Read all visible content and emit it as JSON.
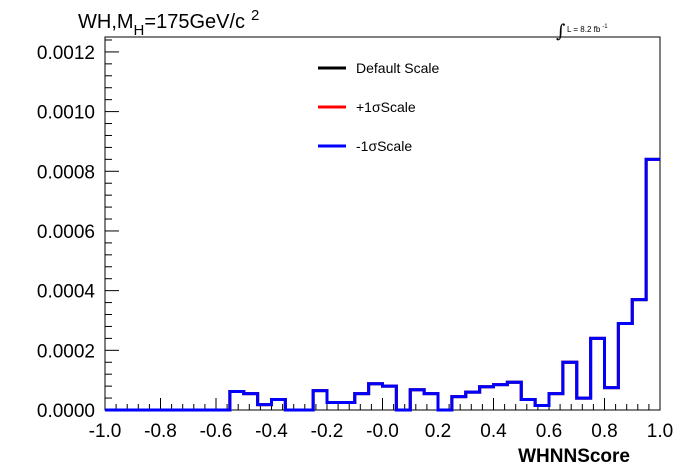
{
  "chart_data": {
    "type": "step-histogram",
    "title_main": "WH,M",
    "title_sub": "H",
    "title_rest": "=175GeV/c",
    "title_sup": "2",
    "lumi_label": "L = 8.2 fb",
    "lumi_sup": "-1",
    "xlabel": "WHNNScore",
    "xlim": [
      -1.0,
      1.0
    ],
    "ylim": [
      0.0,
      0.00125
    ],
    "x_ticks": [
      "-1.0",
      "-0.8",
      "-0.6",
      "-0.4",
      "-0.2",
      "-0.0",
      "0.2",
      "0.4",
      "0.6",
      "0.8",
      "1.0"
    ],
    "x_tick_values": [
      -1.0,
      -0.8,
      -0.6,
      -0.4,
      -0.2,
      0.0,
      0.2,
      0.4,
      0.6,
      0.8,
      1.0
    ],
    "y_ticks": [
      "0.0000",
      "0.0002",
      "0.0004",
      "0.0006",
      "0.0008",
      "0.0010",
      "0.0012"
    ],
    "y_tick_values": [
      0.0,
      0.0002,
      0.0004,
      0.0006,
      0.0008,
      0.001,
      0.0012
    ],
    "bin_edges_start": -1.0,
    "bin_width": 0.05,
    "series": [
      {
        "name": "Default Scale",
        "color": "#000000",
        "values": [
          0,
          0,
          0,
          0,
          0,
          0,
          0,
          0,
          0,
          6.2e-05,
          5.5e-05,
          1.8e-05,
          3.5e-05,
          0,
          0,
          6.5e-05,
          2.5e-05,
          2.5e-05,
          5.5e-05,
          8.8e-05,
          8e-05,
          0,
          6.8e-05,
          5.5e-05,
          0,
          4.5e-05,
          6e-05,
          7.8e-05,
          8.5e-05,
          9.3e-05,
          3.5e-05,
          1.5e-05,
          5.5e-05,
          0.00016,
          4e-05,
          0.00024,
          7.5e-05,
          0.00029,
          0.00037,
          0.00084
        ]
      },
      {
        "name": "+1σScale",
        "color": "#ff0000",
        "values": [
          0,
          0,
          0,
          0,
          0,
          0,
          0,
          0,
          0,
          6.2e-05,
          5.5e-05,
          1.8e-05,
          3.5e-05,
          0,
          0,
          6.5e-05,
          2.5e-05,
          2.5e-05,
          5.5e-05,
          8.8e-05,
          8e-05,
          0,
          6.8e-05,
          5.5e-05,
          0,
          4.5e-05,
          6e-05,
          7.8e-05,
          8.5e-05,
          9.3e-05,
          3.5e-05,
          1.5e-05,
          5.5e-05,
          0.00016,
          4e-05,
          0.00024,
          7.5e-05,
          0.00029,
          0.00037,
          0.00084
        ]
      },
      {
        "name": "-1σScale",
        "color": "#0000ff",
        "values": [
          0,
          0,
          0,
          0,
          0,
          0,
          0,
          0,
          0,
          6.2e-05,
          5.5e-05,
          1.8e-05,
          3.5e-05,
          0,
          0,
          6.5e-05,
          2.5e-05,
          2.5e-05,
          5.5e-05,
          8.8e-05,
          8e-05,
          0,
          6.8e-05,
          5.5e-05,
          0,
          4.5e-05,
          6e-05,
          7.8e-05,
          8.5e-05,
          9.3e-05,
          3.5e-05,
          1.5e-05,
          5.5e-05,
          0.00016,
          4e-05,
          0.00024,
          7.5e-05,
          0.00029,
          0.00037,
          0.00084
        ]
      }
    ],
    "legend": {
      "placement": "top-center",
      "items": [
        {
          "label": "Default Scale",
          "color": "#000000"
        },
        {
          "label": "+1σScale",
          "color": "#ff0000"
        },
        {
          "label": "-1σScale",
          "color": "#0000ff"
        }
      ]
    },
    "grid": false
  }
}
